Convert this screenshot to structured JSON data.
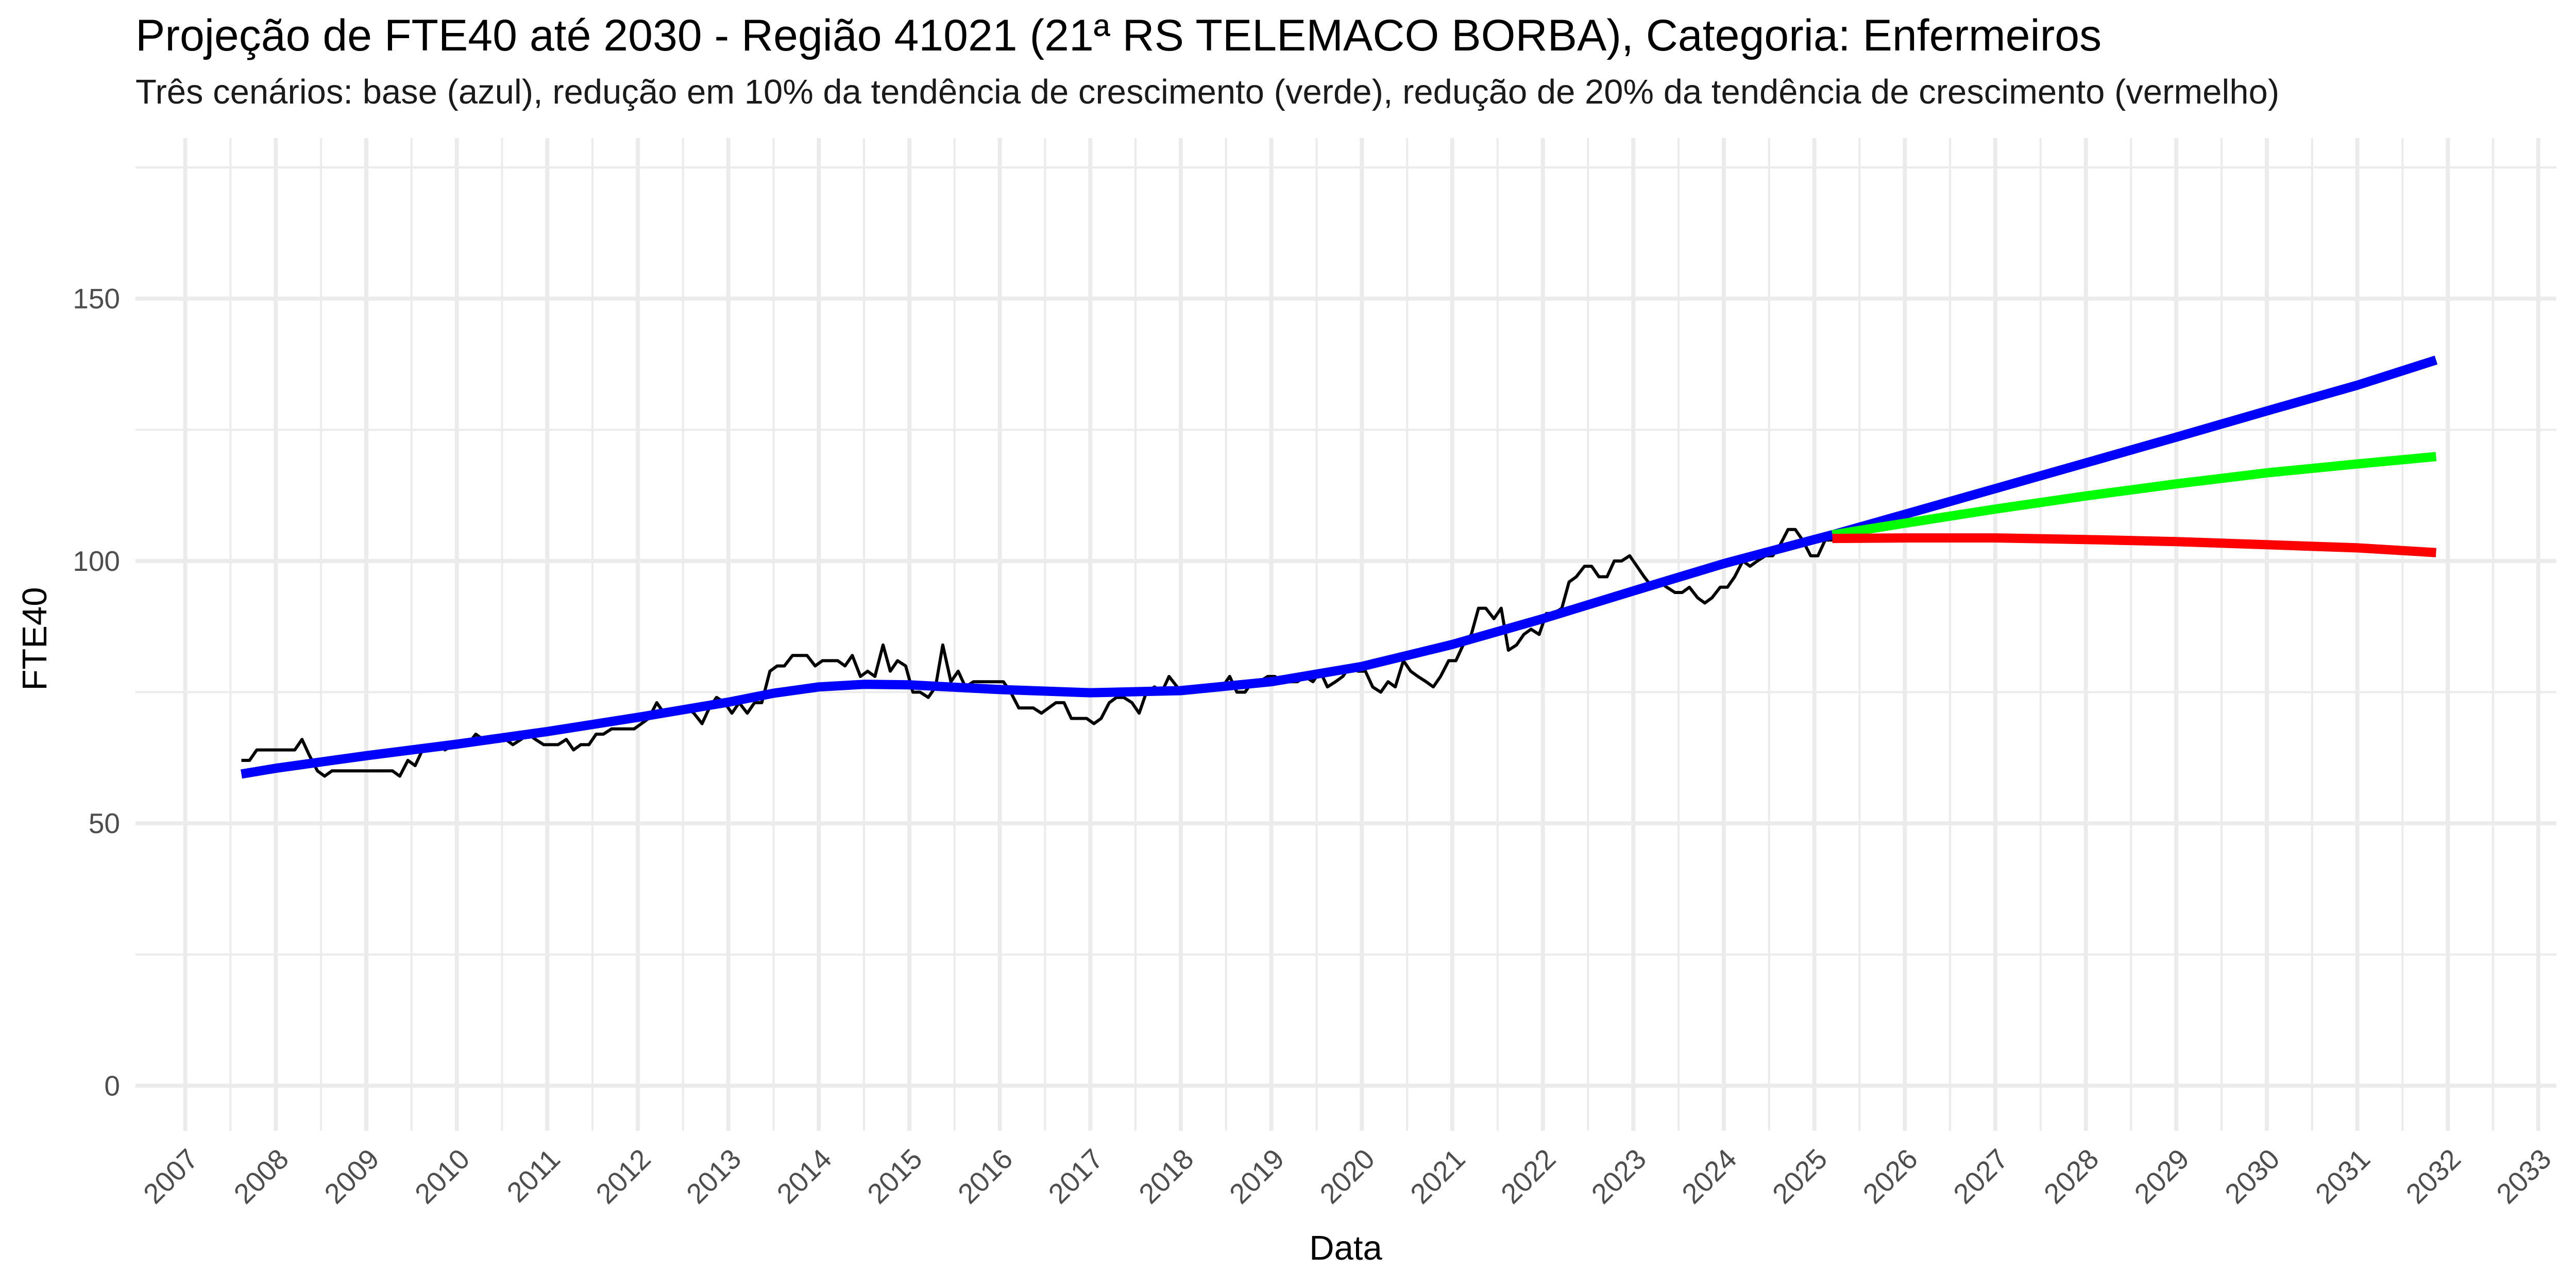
{
  "chart_data": {
    "type": "line",
    "title": "Projeção de FTE40 até 2030 - Região 41021 (21ª RS TELEMACO BORBA), Categoria: Enfermeiros",
    "subtitle": "Três cenários: base (azul), redução em 10% da tendência de crescimento (verde), redução de 20% da tendência de crescimento (vermelho)",
    "xlabel": "Data",
    "ylabel": "FTE40",
    "xlim": [
      2006.45,
      2033.2
    ],
    "ylim": [
      -8.6,
      180.6
    ],
    "x_ticks": [
      2007,
      2008,
      2009,
      2010,
      2011,
      2012,
      2013,
      2014,
      2015,
      2016,
      2017,
      2018,
      2019,
      2020,
      2021,
      2022,
      2023,
      2024,
      2025,
      2026,
      2027,
      2028,
      2029,
      2030,
      2031,
      2032,
      2033
    ],
    "y_ticks": [
      0,
      50,
      100,
      150
    ],
    "grid": true,
    "legend": "none",
    "colors": {
      "observed": "#000000",
      "base": "#0000ff",
      "green": "#00ff00",
      "red": "#ff0000",
      "grid": "#ebebeb"
    },
    "series": [
      {
        "points": [
          [
            2007.62,
            62
          ],
          [
            2007.71,
            62
          ],
          [
            2007.79,
            64
          ],
          [
            2007.87,
            64
          ],
          [
            2007.96,
            64
          ],
          [
            2008.04,
            64
          ],
          [
            2008.12,
            64
          ],
          [
            2008.21,
            64
          ],
          [
            2008.29,
            66
          ],
          [
            2008.37,
            63
          ],
          [
            2008.46,
            60
          ],
          [
            2008.54,
            59
          ],
          [
            2008.62,
            60
          ],
          [
            2008.71,
            60
          ],
          [
            2008.79,
            60
          ],
          [
            2008.87,
            60
          ],
          [
            2008.96,
            60
          ],
          [
            2009.04,
            60
          ],
          [
            2009.12,
            60
          ],
          [
            2009.21,
            60
          ],
          [
            2009.29,
            60
          ],
          [
            2009.37,
            59
          ],
          [
            2009.46,
            62
          ],
          [
            2009.54,
            61
          ],
          [
            2009.62,
            64
          ],
          [
            2009.71,
            65
          ],
          [
            2009.79,
            65
          ],
          [
            2009.87,
            64
          ],
          [
            2009.96,
            65
          ],
          [
            2010.04,
            65
          ],
          [
            2010.12,
            65
          ],
          [
            2010.21,
            67
          ],
          [
            2010.29,
            66
          ],
          [
            2010.37,
            66
          ],
          [
            2010.46,
            66
          ],
          [
            2010.54,
            66
          ],
          [
            2010.62,
            65
          ],
          [
            2010.71,
            66
          ],
          [
            2010.79,
            67
          ],
          [
            2010.87,
            66
          ],
          [
            2010.96,
            65
          ],
          [
            2011.04,
            65
          ],
          [
            2011.12,
            65
          ],
          [
            2011.21,
            66
          ],
          [
            2011.29,
            64
          ],
          [
            2011.37,
            65
          ],
          [
            2011.46,
            65
          ],
          [
            2011.54,
            67
          ],
          [
            2011.62,
            67
          ],
          [
            2011.71,
            68
          ],
          [
            2011.79,
            68
          ],
          [
            2011.87,
            68
          ],
          [
            2011.96,
            68
          ],
          [
            2012.04,
            69
          ],
          [
            2012.12,
            70
          ],
          [
            2012.21,
            73
          ],
          [
            2012.29,
            71
          ],
          [
            2012.37,
            71
          ],
          [
            2012.46,
            71
          ],
          [
            2012.54,
            72
          ],
          [
            2012.62,
            71
          ],
          [
            2012.71,
            69
          ],
          [
            2012.79,
            72
          ],
          [
            2012.87,
            74
          ],
          [
            2012.96,
            73
          ],
          [
            2013.04,
            71
          ],
          [
            2013.12,
            73
          ],
          [
            2013.21,
            71
          ],
          [
            2013.29,
            73
          ],
          [
            2013.37,
            73
          ],
          [
            2013.46,
            79
          ],
          [
            2013.54,
            80
          ],
          [
            2013.62,
            80
          ],
          [
            2013.71,
            82
          ],
          [
            2013.79,
            82
          ],
          [
            2013.87,
            82
          ],
          [
            2013.96,
            80
          ],
          [
            2014.04,
            81
          ],
          [
            2014.12,
            81
          ],
          [
            2014.21,
            81
          ],
          [
            2014.29,
            80
          ],
          [
            2014.37,
            82
          ],
          [
            2014.46,
            78
          ],
          [
            2014.54,
            79
          ],
          [
            2014.62,
            78
          ],
          [
            2014.71,
            84
          ],
          [
            2014.79,
            79
          ],
          [
            2014.87,
            81
          ],
          [
            2014.96,
            80
          ],
          [
            2015.04,
            75
          ],
          [
            2015.12,
            75
          ],
          [
            2015.21,
            74
          ],
          [
            2015.29,
            76
          ],
          [
            2015.37,
            84
          ],
          [
            2015.46,
            77
          ],
          [
            2015.54,
            79
          ],
          [
            2015.62,
            76
          ],
          [
            2015.71,
            77
          ],
          [
            2015.79,
            77
          ],
          [
            2015.87,
            77
          ],
          [
            2015.96,
            77
          ],
          [
            2016.04,
            77
          ],
          [
            2016.12,
            75
          ],
          [
            2016.21,
            72
          ],
          [
            2016.29,
            72
          ],
          [
            2016.37,
            72
          ],
          [
            2016.46,
            71
          ],
          [
            2016.54,
            72
          ],
          [
            2016.62,
            73
          ],
          [
            2016.71,
            73
          ],
          [
            2016.79,
            70
          ],
          [
            2016.87,
            70
          ],
          [
            2016.96,
            70
          ],
          [
            2017.04,
            69
          ],
          [
            2017.12,
            70
          ],
          [
            2017.21,
            73
          ],
          [
            2017.29,
            74
          ],
          [
            2017.37,
            74
          ],
          [
            2017.46,
            73
          ],
          [
            2017.54,
            71
          ],
          [
            2017.62,
            75
          ],
          [
            2017.71,
            76
          ],
          [
            2017.79,
            75
          ],
          [
            2017.87,
            78
          ],
          [
            2017.96,
            76
          ],
          [
            2018.04,
            75
          ],
          [
            2018.12,
            76
          ],
          [
            2018.21,
            76
          ],
          [
            2018.29,
            76
          ],
          [
            2018.37,
            76
          ],
          [
            2018.46,
            76
          ],
          [
            2018.54,
            78
          ],
          [
            2018.62,
            75
          ],
          [
            2018.71,
            75
          ],
          [
            2018.79,
            77
          ],
          [
            2018.87,
            77
          ],
          [
            2018.96,
            78
          ],
          [
            2019.04,
            78
          ],
          [
            2019.12,
            77
          ],
          [
            2019.21,
            77
          ],
          [
            2019.29,
            77
          ],
          [
            2019.37,
            78
          ],
          [
            2019.46,
            77
          ],
          [
            2019.54,
            79
          ],
          [
            2019.62,
            76
          ],
          [
            2019.71,
            77
          ],
          [
            2019.79,
            78
          ],
          [
            2019.87,
            80
          ],
          [
            2019.96,
            79
          ],
          [
            2020.04,
            79
          ],
          [
            2020.12,
            76
          ],
          [
            2020.21,
            75
          ],
          [
            2020.29,
            77
          ],
          [
            2020.37,
            76
          ],
          [
            2020.46,
            81
          ],
          [
            2020.54,
            79
          ],
          [
            2020.62,
            78
          ],
          [
            2020.71,
            77
          ],
          [
            2020.79,
            76
          ],
          [
            2020.87,
            78
          ],
          [
            2020.96,
            81
          ],
          [
            2021.04,
            81
          ],
          [
            2021.12,
            84
          ],
          [
            2021.21,
            86
          ],
          [
            2021.29,
            91
          ],
          [
            2021.37,
            91
          ],
          [
            2021.46,
            89
          ],
          [
            2021.54,
            91
          ],
          [
            2021.62,
            83
          ],
          [
            2021.71,
            84
          ],
          [
            2021.79,
            86
          ],
          [
            2021.87,
            87
          ],
          [
            2021.96,
            86
          ],
          [
            2022.04,
            90
          ],
          [
            2022.12,
            90
          ],
          [
            2022.21,
            91
          ],
          [
            2022.29,
            96
          ],
          [
            2022.37,
            97
          ],
          [
            2022.46,
            99
          ],
          [
            2022.54,
            99
          ],
          [
            2022.62,
            97
          ],
          [
            2022.71,
            97
          ],
          [
            2022.79,
            100
          ],
          [
            2022.87,
            100
          ],
          [
            2022.96,
            101
          ],
          [
            2023.04,
            99
          ],
          [
            2023.12,
            97
          ],
          [
            2023.21,
            95
          ],
          [
            2023.29,
            96
          ],
          [
            2023.37,
            95
          ],
          [
            2023.46,
            94
          ],
          [
            2023.54,
            94
          ],
          [
            2023.62,
            95
          ],
          [
            2023.71,
            93
          ],
          [
            2023.79,
            92
          ],
          [
            2023.87,
            93
          ],
          [
            2023.96,
            95
          ],
          [
            2024.04,
            95
          ],
          [
            2024.12,
            97
          ],
          [
            2024.21,
            100
          ],
          [
            2024.29,
            99
          ],
          [
            2024.37,
            100
          ],
          [
            2024.46,
            101
          ],
          [
            2024.54,
            101
          ],
          [
            2024.62,
            103
          ],
          [
            2024.71,
            106
          ],
          [
            2024.79,
            106
          ],
          [
            2024.87,
            104
          ],
          [
            2024.96,
            101
          ],
          [
            2025.04,
            101
          ],
          [
            2025.12,
            104
          ],
          [
            2025.21,
            104
          ]
        ]
      },
      {
        "points": [
          [
            2007.62,
            59.4
          ],
          [
            2008.0,
            60.5
          ],
          [
            2009.0,
            62.9
          ],
          [
            2010.0,
            65.1
          ],
          [
            2011.0,
            67.5
          ],
          [
            2012.0,
            70.2
          ],
          [
            2013.0,
            73.1
          ],
          [
            2013.5,
            74.8
          ],
          [
            2014.0,
            76.0
          ],
          [
            2014.5,
            76.5
          ],
          [
            2015.0,
            76.4
          ],
          [
            2016.0,
            75.5
          ],
          [
            2017.0,
            74.9
          ],
          [
            2018.0,
            75.3
          ],
          [
            2019.0,
            77.0
          ],
          [
            2020.0,
            79.9
          ],
          [
            2021.0,
            84.1
          ],
          [
            2022.0,
            89.0
          ],
          [
            2023.0,
            94.3
          ],
          [
            2024.0,
            99.5
          ],
          [
            2025.0,
            104.1
          ],
          [
            2025.2,
            105.0
          ]
        ]
      },
      {
        "points": [
          [
            2025.2,
            105.0
          ],
          [
            2026.0,
            108.9
          ],
          [
            2027.0,
            113.8
          ],
          [
            2028.0,
            118.7
          ],
          [
            2029.0,
            123.6
          ],
          [
            2030.0,
            128.6
          ],
          [
            2031.0,
            133.5
          ],
          [
            2031.87,
            138.3
          ]
        ]
      },
      {
        "points": [
          [
            2025.2,
            105.0
          ],
          [
            2026.0,
            107.2
          ],
          [
            2027.0,
            109.9
          ],
          [
            2028.0,
            112.4
          ],
          [
            2029.0,
            114.7
          ],
          [
            2030.0,
            116.8
          ],
          [
            2031.0,
            118.5
          ],
          [
            2031.87,
            119.9
          ]
        ]
      },
      {
        "points": [
          [
            2025.2,
            104.3
          ],
          [
            2026.0,
            104.4
          ],
          [
            2027.0,
            104.4
          ],
          [
            2028.0,
            104.1
          ],
          [
            2029.0,
            103.7
          ],
          [
            2030.0,
            103.1
          ],
          [
            2031.0,
            102.5
          ],
          [
            2031.87,
            101.6
          ]
        ]
      }
    ]
  }
}
